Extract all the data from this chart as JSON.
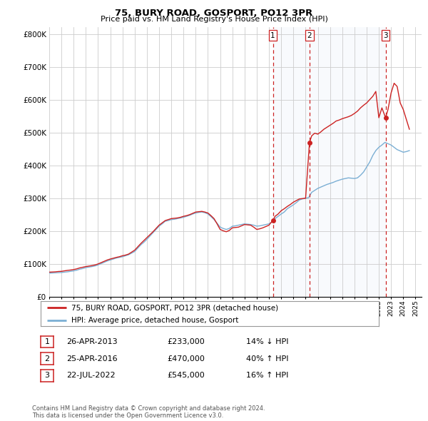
{
  "title": "75, BURY ROAD, GOSPORT, PO12 3PR",
  "subtitle": "Price paid vs. HM Land Registry's House Price Index (HPI)",
  "xlim": [
    1995.0,
    2025.5
  ],
  "ylim": [
    0,
    820000
  ],
  "yticks": [
    0,
    100000,
    200000,
    300000,
    400000,
    500000,
    600000,
    700000,
    800000
  ],
  "ytick_labels": [
    "£0",
    "£100K",
    "£200K",
    "£300K",
    "£400K",
    "£500K",
    "£600K",
    "£700K",
    "£800K"
  ],
  "hpi_color": "#7bafd4",
  "price_color": "#cc2222",
  "bg_highlight_color": "#dce6f5",
  "vline_color": "#cc2222",
  "grid_color": "#cccccc",
  "sale_points": [
    {
      "year": 2013.32,
      "price": 233000,
      "label": "1"
    },
    {
      "year": 2016.32,
      "price": 470000,
      "label": "2"
    },
    {
      "year": 2022.55,
      "price": 545000,
      "label": "3"
    }
  ],
  "vlines": [
    2013.32,
    2016.32,
    2022.55
  ],
  "legend_price_label": "75, BURY ROAD, GOSPORT, PO12 3PR (detached house)",
  "legend_hpi_label": "HPI: Average price, detached house, Gosport",
  "table_rows": [
    {
      "num": "1",
      "date": "26-APR-2013",
      "price": "£233,000",
      "change": "14% ↓ HPI"
    },
    {
      "num": "2",
      "date": "25-APR-2016",
      "price": "£470,000",
      "change": "40% ↑ HPI"
    },
    {
      "num": "3",
      "date": "22-JUL-2022",
      "price": "£545,000",
      "change": "16% ↑ HPI"
    }
  ],
  "footer": "Contains HM Land Registry data © Crown copyright and database right 2024.\nThis data is licensed under the Open Government Licence v3.0.",
  "hpi_data_years": [
    1995.0,
    1995.25,
    1995.5,
    1995.75,
    1996.0,
    1996.25,
    1996.5,
    1996.75,
    1997.0,
    1997.25,
    1997.5,
    1997.75,
    1998.0,
    1998.25,
    1998.5,
    1998.75,
    1999.0,
    1999.25,
    1999.5,
    1999.75,
    2000.0,
    2000.25,
    2000.5,
    2000.75,
    2001.0,
    2001.25,
    2001.5,
    2001.75,
    2002.0,
    2002.25,
    2002.5,
    2002.75,
    2003.0,
    2003.25,
    2003.5,
    2003.75,
    2004.0,
    2004.25,
    2004.5,
    2004.75,
    2005.0,
    2005.25,
    2005.5,
    2005.75,
    2006.0,
    2006.25,
    2006.5,
    2006.75,
    2007.0,
    2007.25,
    2007.5,
    2007.75,
    2008.0,
    2008.25,
    2008.5,
    2008.75,
    2009.0,
    2009.25,
    2009.5,
    2009.75,
    2010.0,
    2010.25,
    2010.5,
    2010.75,
    2011.0,
    2011.25,
    2011.5,
    2011.75,
    2012.0,
    2012.25,
    2012.5,
    2012.75,
    2013.0,
    2013.25,
    2013.5,
    2013.75,
    2014.0,
    2014.25,
    2014.5,
    2014.75,
    2015.0,
    2015.25,
    2015.5,
    2015.75,
    2016.0,
    2016.25,
    2016.5,
    2016.75,
    2017.0,
    2017.25,
    2017.5,
    2017.75,
    2018.0,
    2018.25,
    2018.5,
    2018.75,
    2019.0,
    2019.25,
    2019.5,
    2019.75,
    2020.0,
    2020.25,
    2020.5,
    2020.75,
    2021.0,
    2021.25,
    2021.5,
    2021.75,
    2022.0,
    2022.25,
    2022.5,
    2022.75,
    2023.0,
    2023.25,
    2023.5,
    2023.75,
    2024.0,
    2024.25,
    2024.5
  ],
  "hpi_data_values": [
    72000,
    72500,
    73000,
    73500,
    74000,
    75000,
    76000,
    77500,
    79000,
    81000,
    84000,
    86000,
    89000,
    90500,
    92000,
    94000,
    97000,
    101000,
    105000,
    109000,
    112000,
    115000,
    118000,
    120000,
    122000,
    125000,
    128000,
    133000,
    138000,
    148000,
    158000,
    166000,
    175000,
    185000,
    195000,
    205000,
    215000,
    222000,
    230000,
    232000,
    235000,
    236000,
    238000,
    240000,
    242000,
    245000,
    248000,
    252000,
    255000,
    257000,
    258000,
    256000,
    252000,
    244000,
    235000,
    224000,
    212000,
    208000,
    205000,
    208000,
    215000,
    216000,
    218000,
    220000,
    222000,
    221000,
    220000,
    218000,
    215000,
    216000,
    218000,
    220000,
    222000,
    228000,
    238000,
    245000,
    252000,
    258000,
    268000,
    274000,
    280000,
    287000,
    295000,
    298000,
    300000,
    302000,
    318000,
    324000,
    330000,
    334000,
    338000,
    342000,
    345000,
    348000,
    352000,
    355000,
    358000,
    360000,
    362000,
    361000,
    360000,
    362000,
    370000,
    380000,
    395000,
    410000,
    430000,
    445000,
    455000,
    462000,
    470000,
    466000,
    462000,
    455000,
    448000,
    444000,
    440000,
    442000,
    445000
  ],
  "price_data_years": [
    1995.0,
    1995.25,
    1995.5,
    1995.75,
    1996.0,
    1996.25,
    1996.5,
    1996.75,
    1997.0,
    1997.25,
    1997.5,
    1997.75,
    1998.0,
    1998.25,
    1998.5,
    1998.75,
    1999.0,
    1999.25,
    1999.5,
    1999.75,
    2000.0,
    2000.25,
    2000.5,
    2000.75,
    2001.0,
    2001.25,
    2001.5,
    2001.75,
    2002.0,
    2002.25,
    2002.5,
    2002.75,
    2003.0,
    2003.25,
    2003.5,
    2003.75,
    2004.0,
    2004.25,
    2004.5,
    2004.75,
    2005.0,
    2005.25,
    2005.5,
    2005.75,
    2006.0,
    2006.25,
    2006.5,
    2006.75,
    2007.0,
    2007.25,
    2007.5,
    2007.75,
    2008.0,
    2008.25,
    2008.5,
    2008.75,
    2009.0,
    2009.25,
    2009.5,
    2009.75,
    2010.0,
    2010.25,
    2010.5,
    2010.75,
    2011.0,
    2011.25,
    2011.5,
    2011.75,
    2012.0,
    2012.25,
    2012.5,
    2012.75,
    2013.0,
    2013.32,
    2013.5,
    2013.75,
    2014.0,
    2014.25,
    2014.5,
    2014.75,
    2015.0,
    2015.25,
    2015.5,
    2015.75,
    2016.0,
    2016.32,
    2016.5,
    2016.75,
    2017.0,
    2017.25,
    2017.5,
    2017.75,
    2018.0,
    2018.25,
    2018.5,
    2018.75,
    2019.0,
    2019.25,
    2019.5,
    2019.75,
    2020.0,
    2020.25,
    2020.5,
    2020.75,
    2021.0,
    2021.25,
    2021.5,
    2021.75,
    2022.0,
    2022.25,
    2022.55,
    2022.75,
    2023.0,
    2023.25,
    2023.5,
    2023.75,
    2024.0,
    2024.25,
    2024.5
  ],
  "price_data_values": [
    75000,
    75500,
    76000,
    77000,
    77500,
    79000,
    80500,
    81500,
    83000,
    85000,
    88000,
    90000,
    92000,
    93500,
    95000,
    97000,
    100000,
    104000,
    108000,
    112000,
    115000,
    117500,
    120000,
    122000,
    125000,
    127000,
    130000,
    136000,
    142000,
    152000,
    162000,
    171000,
    180000,
    189000,
    198000,
    208000,
    218000,
    225000,
    232000,
    235000,
    238000,
    239000,
    240000,
    242000,
    245000,
    247000,
    250000,
    254000,
    258000,
    259000,
    260000,
    258000,
    255000,
    247000,
    238000,
    222000,
    205000,
    201000,
    198000,
    202000,
    210000,
    211000,
    212000,
    216000,
    220000,
    219000,
    218000,
    212000,
    205000,
    207000,
    210000,
    214000,
    218000,
    233000,
    245000,
    252000,
    262000,
    268000,
    275000,
    281000,
    288000,
    293000,
    298000,
    299000,
    300000,
    470000,
    490000,
    498000,
    495000,
    502000,
    510000,
    516000,
    522000,
    528000,
    535000,
    538000,
    542000,
    545000,
    548000,
    552000,
    558000,
    565000,
    575000,
    583000,
    590000,
    600000,
    610000,
    625000,
    545000,
    575000,
    545000,
    570000,
    620000,
    650000,
    640000,
    590000,
    570000,
    540000,
    510000
  ]
}
